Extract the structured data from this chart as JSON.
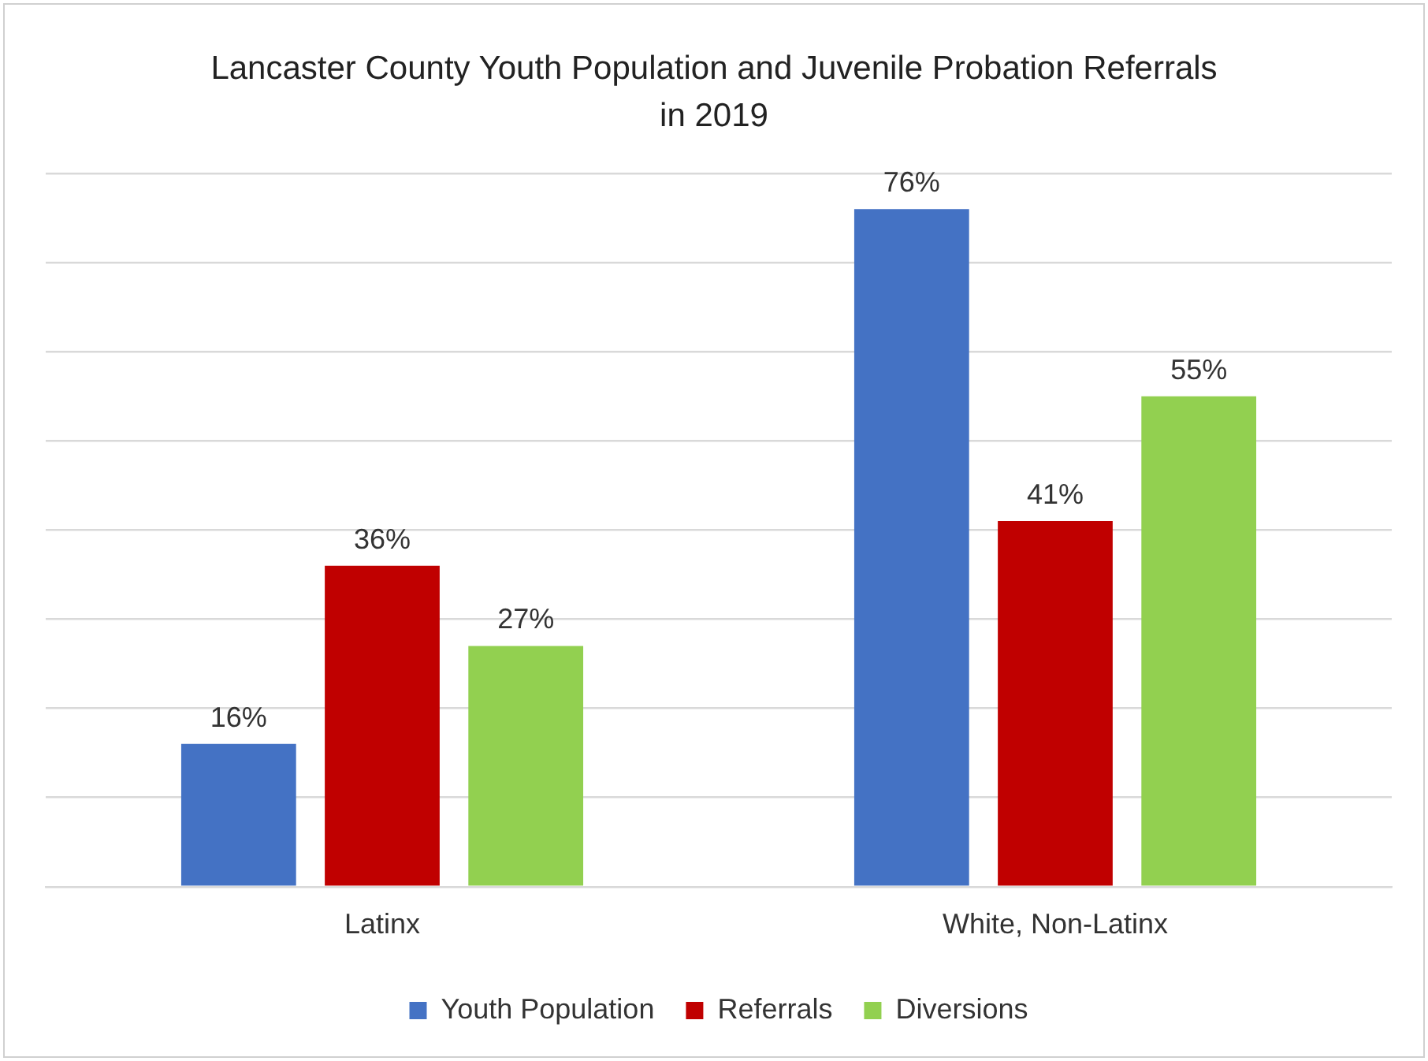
{
  "chart_data": {
    "type": "bar",
    "title": "Lancaster County Youth Population and Juvenile Probation Referrals in 2019",
    "categories": [
      "Latinx",
      "White, Non-Latinx"
    ],
    "series": [
      {
        "name": "Youth Population",
        "color": "#4472c4",
        "values": [
          16,
          76
        ],
        "value_labels": [
          "16%",
          "76%"
        ]
      },
      {
        "name": "Referrals",
        "color": "#c00000",
        "values": [
          36,
          41
        ],
        "value_labels": [
          "36%",
          "41%"
        ]
      },
      {
        "name": "Diversions",
        "color": "#92d050",
        "values": [
          27,
          55
        ],
        "value_labels": [
          "27%",
          "55%"
        ]
      }
    ],
    "ylim": [
      0,
      80
    ],
    "yticks": [
      {
        "value": 0,
        "label": null
      },
      {
        "value": 10,
        "label": null
      },
      {
        "value": 20,
        "label": null
      },
      {
        "value": 30,
        "label": null
      },
      {
        "value": 40,
        "label": null
      },
      {
        "value": 50,
        "label": null
      },
      {
        "value": 60,
        "label": null
      },
      {
        "value": 70,
        "label": null
      },
      {
        "value": 80,
        "label": null
      }
    ],
    "grid": "y",
    "legend": "bottom",
    "tick_labels": "x"
  }
}
